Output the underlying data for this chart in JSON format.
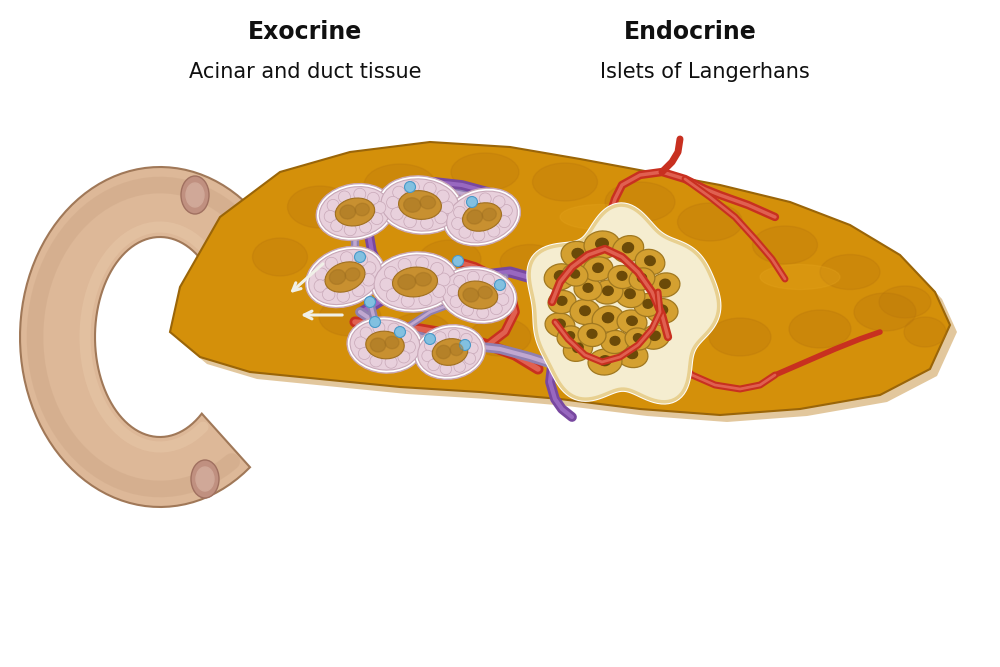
{
  "exocrine_label_1": "Exocrine",
  "exocrine_label_2": "Acinar and duct tissue",
  "endocrine_label_1": "Endocrine",
  "endocrine_label_2": "Islets of Langerhans",
  "bg_color": "#ffffff",
  "pancreas_color": "#D4900A",
  "pancreas_dark": "#B8750A",
  "pancreas_light": "#E8A820",
  "duodenum_color": "#DDB898",
  "duodenum_dark": "#C09878",
  "duodenum_inner": "#E8C8A8",
  "acinar_pink": "#E8D0DC",
  "acinar_pink_dark": "#C8A8B8",
  "acinar_center": "#C89030",
  "acinar_center_dark": "#A07020",
  "islet_bg": "#F5EDD0",
  "islet_cell_fill": "#D4A030",
  "islet_cell_dark": "#A07820",
  "islet_border": "#E8D090",
  "blood_artery": "#C83020",
  "blood_artery_light": "#E06050",
  "blood_vein": "#7848A0",
  "blood_vein_light": "#9868C0",
  "duct_color": "#9080B0",
  "duct_light": "#C0A8D0",
  "white_arrow": "#F0F0E8",
  "text_color": "#101010",
  "label_fontsize": 17,
  "sublabel_fontsize": 15
}
